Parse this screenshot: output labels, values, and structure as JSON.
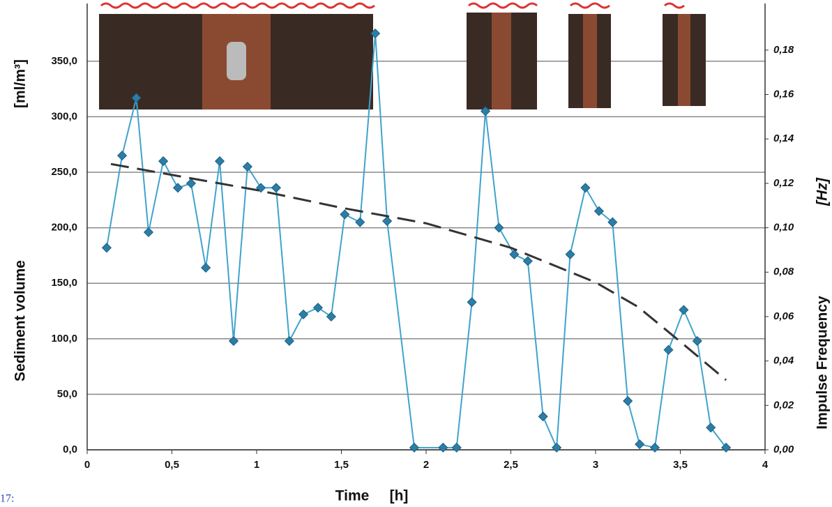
{
  "chart_data": {
    "type": "line",
    "xlabel": "Time",
    "x_unit": "[h]",
    "ylabel": "Sediment volume",
    "y_unit": "[ml/m³]",
    "y2label": "Impulse Frequency",
    "y2_unit": "[Hz]",
    "annotation": "17:",
    "xlim": [
      0,
      4
    ],
    "xticks": [
      0,
      {
        "value": 0.5,
        "label": "0,5"
      },
      1,
      {
        "value": 1.5,
        "label": "1,5"
      },
      2,
      {
        "value": 2.5,
        "label": "2,5"
      },
      3,
      {
        "value": 3.5,
        "label": "3,5"
      },
      4
    ],
    "ylim": [
      0,
      402
    ],
    "yticks": [
      {
        "value": 0,
        "label": "0,0"
      },
      {
        "value": 50,
        "label": "50,0"
      },
      {
        "value": 100,
        "label": "100,0"
      },
      {
        "value": 150,
        "label": "150,0"
      },
      {
        "value": 200,
        "label": "200,0"
      },
      {
        "value": 250,
        "label": "250,0"
      },
      {
        "value": 300,
        "label": "300,0"
      },
      {
        "value": 350,
        "label": "350,0"
      }
    ],
    "y2lim": [
      0,
      0.201
    ],
    "y2ticks": [
      {
        "value": 0,
        "label": "0,00"
      },
      {
        "value": 0.02,
        "label": "0,02"
      },
      {
        "value": 0.04,
        "label": "0,04"
      },
      {
        "value": 0.06,
        "label": "0,06"
      },
      {
        "value": 0.08,
        "label": "0,08"
      },
      {
        "value": 0.1,
        "label": "0,10"
      },
      {
        "value": 0.12,
        "label": "0,12"
      },
      {
        "value": 0.14,
        "label": "0,14"
      },
      {
        "value": 0.16,
        "label": "0,16"
      },
      {
        "value": 0.18,
        "label": "0,18"
      }
    ],
    "grid": true,
    "series": [
      {
        "color": "#3fa3cc",
        "marker_color": "#2b7ea6",
        "x": [
          0.115,
          0.206,
          0.29,
          0.362,
          0.449,
          0.535,
          0.613,
          0.7,
          0.782,
          0.864,
          0.946,
          1.025,
          1.115,
          1.193,
          1.276,
          1.362,
          1.44,
          1.52,
          1.61,
          1.7,
          1.77,
          1.93,
          2.1,
          2.18,
          2.27,
          2.35,
          2.43,
          2.52,
          2.6,
          2.69,
          2.77,
          2.85,
          2.94,
          3.02,
          3.1,
          3.19,
          3.26,
          3.35,
          3.43,
          3.52,
          3.6,
          3.68,
          3.77
        ],
        "values": [
          182,
          265,
          317,
          196,
          260,
          236,
          240,
          164,
          260,
          98,
          255,
          236,
          236,
          98,
          122,
          128,
          120,
          212,
          205,
          375,
          206,
          2,
          2,
          2,
          133,
          305,
          200,
          176,
          170,
          30,
          2,
          176,
          236,
          215,
          205,
          44,
          5,
          2,
          90,
          126,
          98,
          20,
          2
        ]
      },
      {
        "color": "#333333",
        "axis": "y2",
        "dashed": true,
        "x": [
          0.14,
          1.0,
          1.5,
          2.0,
          2.5,
          3.0,
          3.25,
          3.5,
          3.77
        ],
        "values": [
          0.1287,
          0.117,
          0.109,
          0.102,
          0.091,
          0.0754,
          0.0644,
          0.0487,
          0.0314
        ]
      }
    ]
  }
}
